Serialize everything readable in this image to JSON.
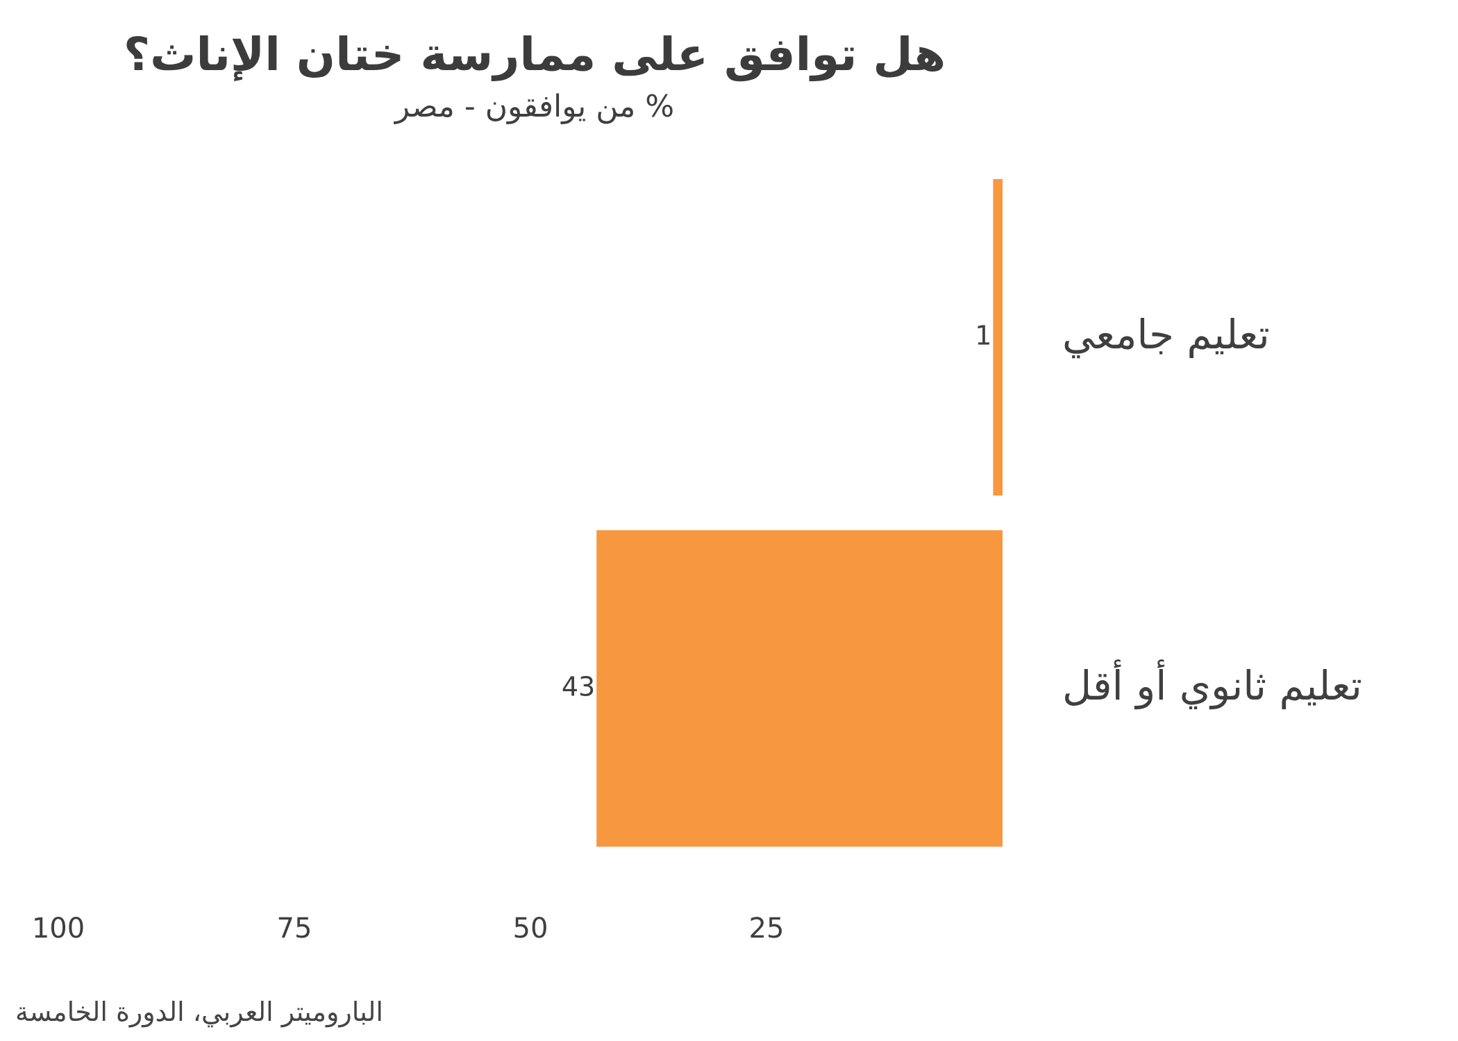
{
  "chart_data": {
    "type": "bar",
    "orientation": "horizontal",
    "x_direction": "right-to-left",
    "title": "هل توافق على ممارسة ختان الإناث؟",
    "subtitle": "% من يوافقون - مصر",
    "categories": [
      "تعليم جامعي",
      "تعليم ثانوي أو أقل"
    ],
    "values": [
      1,
      43
    ],
    "value_labels": [
      "1",
      "43"
    ],
    "x_ticks": [
      25,
      50,
      75,
      100
    ],
    "xlim": [
      0,
      100
    ],
    "grid": false,
    "legend": "none",
    "source": "الباروميتر العربي، الدورة الخامسة"
  },
  "colors": {
    "bar": "#F79840",
    "text": "#3f3f3f"
  }
}
